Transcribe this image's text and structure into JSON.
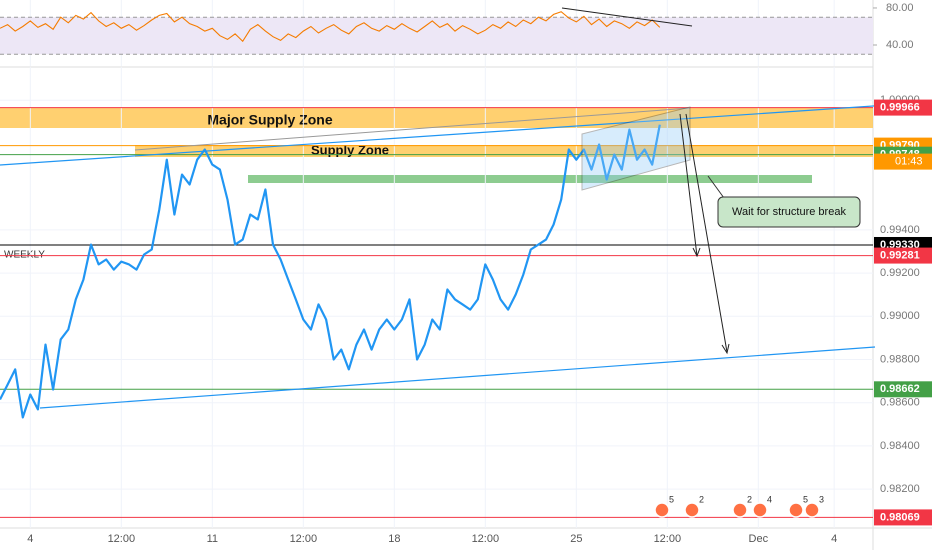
{
  "chart_data": {
    "type": "line",
    "categories": [
      null,
      null,
      null,
      null,
      "4",
      null,
      null,
      null,
      null,
      null,
      null,
      null,
      null,
      null,
      null,
      null,
      "12:00",
      null,
      null,
      null,
      null,
      null,
      null,
      null,
      null,
      null,
      null,
      null,
      "11",
      null,
      null,
      null,
      null,
      null,
      null,
      null,
      null,
      null,
      null,
      null,
      "12:00",
      null,
      null,
      null,
      null,
      null,
      null,
      null,
      null,
      null,
      null,
      null,
      "18",
      null,
      null,
      null,
      null,
      null,
      null,
      null,
      null,
      null,
      null,
      null,
      "12:00",
      null,
      null,
      null,
      null,
      null,
      null,
      null,
      null,
      null,
      null,
      null,
      "25",
      null,
      null,
      null,
      null,
      null,
      null,
      null,
      null,
      null,
      null,
      null,
      "12:00",
      null,
      null,
      null,
      null,
      null,
      null,
      null,
      null,
      null,
      null,
      null,
      "Dec",
      null,
      null,
      null,
      null,
      null,
      null,
      null,
      null,
      null,
      "4"
    ],
    "series": [
      {
        "color": "#2196f3",
        "values": [
          0.98615,
          0.98684,
          0.98754,
          0.98532,
          0.98638,
          0.98569,
          0.98869,
          0.98661,
          0.98893,
          0.98939,
          0.99078,
          0.9917,
          0.99332,
          0.9924,
          0.99263,
          0.99216,
          0.99253,
          0.9924,
          0.99216,
          0.99286,
          0.99309,
          0.99494,
          0.99725,
          0.99471,
          0.99656,
          0.9961,
          0.99725,
          0.99772,
          0.99702,
          0.99679,
          0.9954,
          0.99332,
          0.99355,
          0.99471,
          0.99448,
          0.99587,
          0.99332,
          0.99263,
          0.9917,
          0.99078,
          0.98985,
          0.98939,
          0.99055,
          0.98985,
          0.988,
          0.98846,
          0.98754,
          0.98869,
          0.98939,
          0.98846,
          0.98939,
          0.98985,
          0.98939,
          0.98985,
          0.99078,
          0.988,
          0.98869,
          0.98985,
          0.98939,
          0.99124,
          0.99078,
          0.99055,
          0.99031,
          0.99078,
          0.9924,
          0.9917,
          0.99078,
          0.99031,
          0.99101,
          0.99193,
          0.99309,
          0.99332,
          0.99355,
          0.99425,
          0.9954,
          0.99772,
          0.99725,
          0.99772,
          0.99679,
          0.99795,
          0.99633,
          0.99749,
          0.99679,
          0.99864,
          0.99725,
          0.99772,
          0.99702,
          0.99887,
          null,
          null,
          null,
          null,
          null,
          null,
          null,
          null,
          null,
          null,
          null,
          null,
          null,
          null,
          null,
          null,
          null,
          null,
          null,
          null,
          null,
          null,
          null
        ]
      }
    ],
    "ylim": [
      0.9802,
      1.0014
    ],
    "yticks": [
      {
        "value": 0.982,
        "label": "0.98200"
      },
      {
        "value": 0.984,
        "label": "0.98400"
      },
      {
        "value": 0.986,
        "label": "0.98600"
      },
      {
        "value": 0.988,
        "label": "0.98800"
      },
      {
        "value": 0.99,
        "label": "0.99000"
      },
      {
        "value": 0.992,
        "label": "0.99200"
      },
      {
        "value": 0.994,
        "label": "0.99400"
      },
      {
        "value": 1.0,
        "label": "1.00000"
      }
    ],
    "grid": true,
    "levels": [
      {
        "value": 0.99966,
        "label": "0.99966",
        "color": "#f23645"
      },
      {
        "value": 0.9979,
        "label": "0.99790",
        "color": "#ff9800"
      },
      {
        "value": 0.99748,
        "label": "0.99748",
        "color": "#43a047"
      },
      {
        "value": 0.9933,
        "label": "0.99330",
        "color": "#000000"
      },
      {
        "value": 0.99281,
        "label": "0.99281",
        "color": "#f23645"
      },
      {
        "value": 0.98662,
        "label": "0.98662",
        "color": "#43a047"
      },
      {
        "value": 0.98069,
        "label": "0.98069",
        "color": "#f23645"
      }
    ],
    "countdown": "01:43",
    "annotations": {
      "major_zone": "Major Supply Zone",
      "supply_zone": "Supply Zone",
      "weekly": "WEEKLY",
      "note": "Wait for structure break"
    },
    "rsi": {
      "color": "#f57c00",
      "values": [
        58,
        62,
        55,
        60,
        66,
        59,
        63,
        57,
        70,
        64,
        72,
        68,
        75,
        66,
        60,
        64,
        58,
        62,
        56,
        61,
        67,
        72,
        74,
        65,
        70,
        63,
        60,
        55,
        58,
        50,
        46,
        52,
        44,
        57,
        62,
        55,
        49,
        45,
        52,
        48,
        55,
        60,
        53,
        58,
        62,
        56,
        52,
        60,
        64,
        58,
        55,
        61,
        57,
        63,
        58,
        54,
        60,
        66,
        59,
        63,
        55,
        61,
        57,
        52,
        56,
        62,
        58,
        65,
        60,
        67,
        63,
        70,
        66,
        73,
        76,
        69,
        65,
        71,
        62,
        68,
        60,
        66,
        63,
        58,
        65,
        61,
        67,
        59,
        null,
        null,
        null,
        null,
        null,
        null,
        null,
        null,
        null,
        null,
        null,
        null,
        null,
        null,
        null,
        null,
        null,
        null,
        null,
        null,
        null,
        null,
        null
      ],
      "ylim": [
        18.4,
        88.6
      ],
      "yticks": [
        {
          "value": 80,
          "label": "80.00"
        },
        {
          "value": 40,
          "label": "40.00"
        }
      ],
      "band": [
        30,
        70
      ]
    },
    "events": [
      "5",
      "2",
      "2",
      "4",
      "5",
      "3"
    ]
  }
}
